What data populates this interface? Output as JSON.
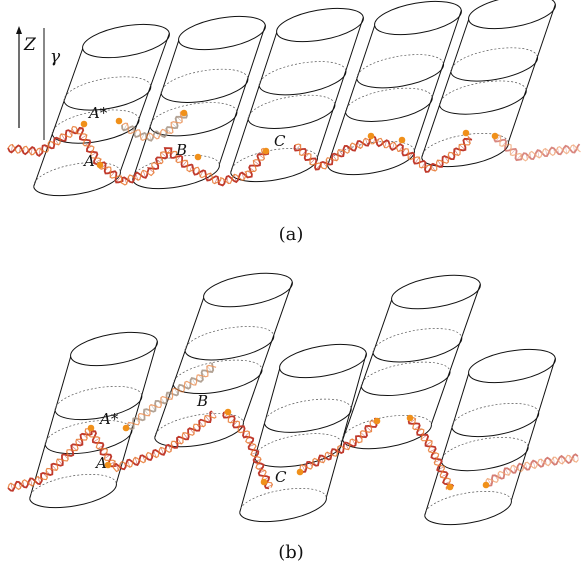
{
  "axis": {
    "z_label": "Z",
    "gamma_label": "γ"
  },
  "panel_a": {
    "caption": "(a)",
    "labels": {
      "a_star": "A*",
      "a": "A",
      "b": "B",
      "c": "C"
    }
  },
  "panel_b": {
    "caption": "(b)",
    "labels": {
      "a_star": "A*",
      "a": "A",
      "b": "B",
      "c": "C"
    }
  },
  "colors": {
    "strand_main": "#c0392b",
    "strand_accent": "#e8772e",
    "strand_faded": "#a08c7a",
    "marker": "#f0901a",
    "cylinder_stroke": "#111111"
  }
}
